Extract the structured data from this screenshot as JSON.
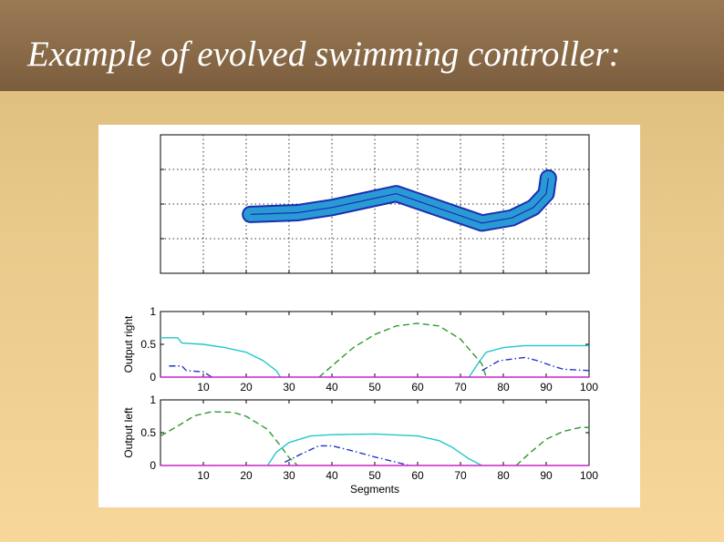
{
  "slide": {
    "title": "Example of evolved swimming controller:"
  },
  "colors": {
    "title_bar": "#8a6b48",
    "background": "#f7d79a",
    "body_fill": "#2a9ad6",
    "body_outline": "#1a2fb0",
    "cyan": "#22c7c7",
    "green": "#2e9a2e",
    "blue": "#2233cc",
    "magenta": "#cc22cc"
  },
  "chart_data": [
    {
      "type": "line",
      "name": "body-shape",
      "xlim": [
        -1,
        9
      ],
      "ylim": [
        -2,
        2
      ],
      "grid": true,
      "ticks_labeled": false,
      "body_midline": {
        "x": [
          1.1,
          2.2,
          3.0,
          4.5,
          6.5,
          7.2,
          7.7,
          8.0,
          8.05
        ],
        "y": [
          -0.3,
          -0.25,
          -0.1,
          0.3,
          -0.55,
          -0.4,
          -0.1,
          0.3,
          0.75
        ]
      }
    },
    {
      "type": "line",
      "name": "output-right",
      "ylabel": "Output right",
      "xlim": [
        0,
        100
      ],
      "ylim": [
        0,
        1
      ],
      "xticks": [
        "10",
        "20",
        "30",
        "40",
        "50",
        "60",
        "70",
        "80",
        "90",
        "100"
      ],
      "yticks": [
        "0",
        "0.5",
        "1"
      ],
      "series": [
        {
          "style": "solid",
          "color": "cyan",
          "x": [
            0,
            4,
            5,
            10,
            15,
            20,
            24,
            27,
            28
          ],
          "y": [
            0.6,
            0.6,
            0.52,
            0.5,
            0.45,
            0.38,
            0.25,
            0.1,
            0
          ]
        },
        {
          "style": "solid",
          "color": "cyan",
          "x": [
            72,
            74,
            76,
            80,
            85,
            90,
            100
          ],
          "y": [
            0,
            0.2,
            0.38,
            0.45,
            0.48,
            0.48,
            0.48
          ]
        },
        {
          "style": "dashed",
          "color": "green",
          "x": [
            37,
            40,
            45,
            50,
            55,
            60,
            65,
            70,
            75,
            76
          ],
          "y": [
            0,
            0.17,
            0.45,
            0.65,
            0.78,
            0.82,
            0.78,
            0.58,
            0.2,
            0
          ]
        },
        {
          "style": "dashdot",
          "color": "blue",
          "x": [
            2,
            5,
            6,
            10,
            12
          ],
          "y": [
            0.17,
            0.17,
            0.1,
            0.08,
            0
          ]
        },
        {
          "style": "dashdot",
          "color": "blue",
          "x": [
            75,
            79,
            85,
            88,
            91,
            94,
            100
          ],
          "y": [
            0.1,
            0.25,
            0.3,
            0.25,
            0.18,
            0.12,
            0.1
          ]
        },
        {
          "style": "solid",
          "color": "magenta",
          "x": [
            0,
            100
          ],
          "y": [
            0,
            0
          ]
        }
      ]
    },
    {
      "type": "line",
      "name": "output-left",
      "ylabel": "Output left",
      "xlabel": "Segments",
      "xlim": [
        0,
        100
      ],
      "ylim": [
        0,
        1
      ],
      "xticks": [
        "10",
        "20",
        "30",
        "40",
        "50",
        "60",
        "70",
        "80",
        "90",
        "100"
      ],
      "yticks": [
        "0",
        "0.5",
        "1"
      ],
      "series": [
        {
          "style": "dashed",
          "color": "green",
          "x": [
            0,
            4,
            8,
            12,
            17,
            20,
            25,
            28,
            30,
            32
          ],
          "y": [
            0.45,
            0.6,
            0.76,
            0.82,
            0.81,
            0.75,
            0.55,
            0.3,
            0.12,
            0
          ]
        },
        {
          "style": "dashed",
          "color": "green",
          "x": [
            83,
            86,
            90,
            94,
            98,
            100
          ],
          "y": [
            0,
            0.18,
            0.4,
            0.52,
            0.58,
            0.58
          ]
        },
        {
          "style": "solid",
          "color": "cyan",
          "x": [
            25,
            27,
            30,
            35,
            40,
            50,
            60,
            65,
            68,
            72,
            75
          ],
          "y": [
            0,
            0.2,
            0.35,
            0.45,
            0.47,
            0.48,
            0.45,
            0.38,
            0.28,
            0.1,
            0
          ]
        },
        {
          "style": "dashdot",
          "color": "blue",
          "x": [
            29,
            33,
            37,
            40,
            45,
            50,
            55,
            58
          ],
          "y": [
            0.05,
            0.18,
            0.3,
            0.3,
            0.22,
            0.13,
            0.05,
            0
          ]
        },
        {
          "style": "solid",
          "color": "magenta",
          "x": [
            0,
            100
          ],
          "y": [
            0,
            0
          ]
        }
      ]
    }
  ]
}
